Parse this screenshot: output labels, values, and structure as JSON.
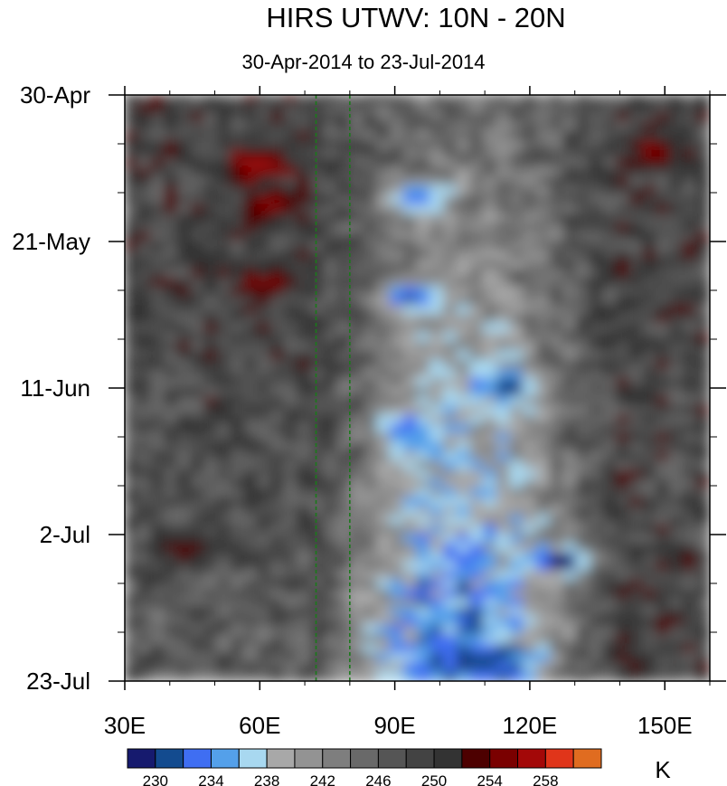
{
  "chart_data": {
    "type": "heatmap",
    "title": "HIRS UTWV: 10N - 20N",
    "subtitle": "30-Apr-2014 to 23-Jul-2014",
    "xlabel": "",
    "ylabel": "",
    "x_axis": {
      "range": [
        30,
        160
      ],
      "ticks": [
        30,
        60,
        90,
        120,
        150
      ],
      "tick_labels": [
        "30E",
        "60E",
        "90E",
        "120E",
        "150E"
      ]
    },
    "y_axis": {
      "range": [
        "30-Apr-2014",
        "23-Jul-2014"
      ],
      "ticks": [
        "30-Apr-2014",
        "21-May-2014",
        "11-Jun-2014",
        "2-Jul-2014",
        "23-Jul-2014"
      ],
      "tick_labels": [
        "30-Apr",
        "21-May",
        "11-Jun",
        "2-Jul",
        "23-Jul"
      ]
    },
    "reference_lines_longitude": [
      72.5,
      80
    ],
    "colorbar": {
      "unit": "K",
      "levels": [
        228,
        230,
        232,
        234,
        236,
        238,
        240,
        242,
        244,
        246,
        248,
        250,
        252,
        254,
        256,
        258,
        260
      ],
      "labeled_levels": [
        230,
        234,
        238,
        242,
        246,
        250,
        254,
        258
      ],
      "colors": [
        "#161a6e",
        "#134b8f",
        "#3f6ef2",
        "#54a0ea",
        "#a8d8f0",
        "#a8a8a8",
        "#939393",
        "#7e7e7e",
        "#696969",
        "#555555",
        "#434343",
        "#333333",
        "#4d0000",
        "#7a0000",
        "#a30808",
        "#e0351a",
        "#e06c20"
      ]
    },
    "features": [
      {
        "lon": 60,
        "date": "10-May-2014",
        "value": 258
      },
      {
        "lon": 63,
        "date": "16-May-2014",
        "value": 256
      },
      {
        "lon": 62,
        "date": "27-May-2014",
        "value": 255
      },
      {
        "lon": 148,
        "date": "8-May-2014",
        "value": 255
      },
      {
        "lon": 95,
        "date": "15-May-2014",
        "value": 232
      },
      {
        "lon": 94,
        "date": "29-May-2014",
        "value": 231
      },
      {
        "lon": 115,
        "date": "11-Jun-2014",
        "value": 230
      },
      {
        "lon": 127,
        "date": "6-Jul-2014",
        "value": 228
      },
      {
        "lon": 110,
        "date": "20-Jul-2014",
        "value": 230
      },
      {
        "lon": 93,
        "date": "17-Jun-2014",
        "value": 232
      },
      {
        "lon": 45,
        "date": "4-Jul-2014",
        "value": 254
      }
    ]
  }
}
